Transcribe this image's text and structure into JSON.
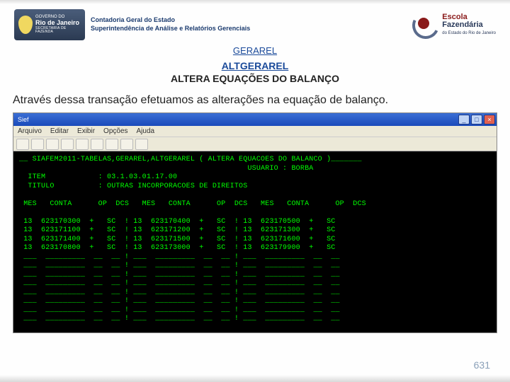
{
  "header": {
    "gov": {
      "line1": "GOVERNO DO",
      "line2": "Rio de Janeiro",
      "line3": "SECRETARIA DE FAZENDA"
    },
    "dept": {
      "line1": "Contadoria Geral do Estado",
      "line2": "Superintendência de Análise e Relatórios Gerenciais"
    },
    "escola": {
      "l1": "Escola",
      "l2": "Fazendária",
      "l3": "do Estado do Rio de Janeiro"
    }
  },
  "links": {
    "gerarel": "GERAREL",
    "altgerarel": " ALTGERAREL"
  },
  "subtitle": "ALTERA EQUAÇÕES DO BALANÇO",
  "paragraph": "Através dessa transação efetuamos as alterações na equação de balanço.",
  "window": {
    "title": "Sief",
    "menu": [
      "Arquivo",
      "Editar",
      "Exibir",
      "Opções",
      "Ajuda"
    ]
  },
  "terminal": {
    "header": "__ SIAFEM2011-TABELAS,GERAREL,ALTGERAREL ( ALTERA EQUACOES DO BALANCO )_______",
    "usuario_label": "USUARIO :",
    "usuario": "BORBA",
    "item_label": "ITEM",
    "item": "03.1.03.01.17.00",
    "titulo_label": "TITULO",
    "titulo": "OUTRAS INCORPORACOES DE DIREITOS",
    "columns": "MES   CONTA      OP  DCS   MES   CONTA      OP  DCS   MES   CONTA      OP  DCS",
    "rows": [
      [
        "13",
        "623170300",
        "+",
        "SC",
        "13",
        "623170400",
        "+",
        "SC",
        "13",
        "623170500",
        "+",
        "SC"
      ],
      [
        "13",
        "623171100",
        "+",
        "SC",
        "13",
        "623171200",
        "+",
        "SC",
        "13",
        "623171300",
        "+",
        "SC"
      ],
      [
        "13",
        "623171400",
        "+",
        "SC",
        "13",
        "623171500",
        "+",
        "SC",
        "13",
        "623171600",
        "+",
        "SC"
      ],
      [
        "13",
        "623170800",
        "+",
        "SC",
        "13",
        "623173000",
        "+",
        "SC",
        "13",
        "623179900",
        "+",
        "SC"
      ]
    ],
    "blank_rows": 8
  },
  "page_number": "631",
  "style": {
    "term_bg": "#000000",
    "term_fg": "#00ff66",
    "link_color": "#1a4a9a",
    "slide_bg": "#fefefe"
  }
}
